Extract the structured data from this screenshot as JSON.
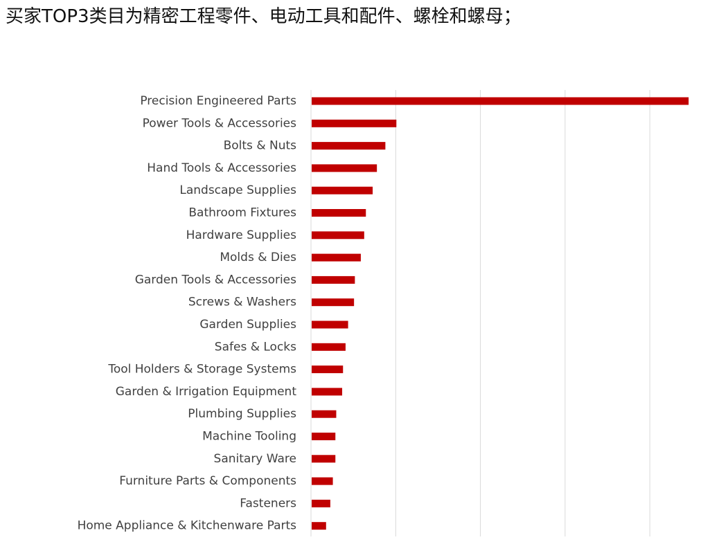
{
  "heading": "买家TOP3类目为精密工程零件、电动工具和配件、螺栓和螺母；",
  "colors": {
    "bar": "#c00000",
    "gridline": "#d9d9d9",
    "label": "#404040"
  },
  "chart_data": {
    "type": "bar",
    "orientation": "horizontal",
    "title": "",
    "xlabel": "",
    "ylabel": "",
    "grid": true,
    "legend": "none",
    "xlim": [
      0,
      4.5
    ],
    "x_tick_labels_shown": false,
    "categories": [
      "Precision Engineered Parts",
      "Power Tools & Accessories",
      "Bolts & Nuts",
      "Hand Tools & Accessories",
      "Landscape Supplies",
      "Bathroom Fixtures",
      "Hardware Supplies",
      "Molds & Dies",
      "Garden Tools & Accessories",
      "Screws & Washers",
      "Garden Supplies",
      "Safes & Locks",
      "Tool Holders & Storage Systems",
      "Garden & Irrigation Equipment",
      "Plumbing Supplies",
      "Machine Tooling",
      "Sanitary Ware",
      "Furniture Parts & Components",
      "Fasteners",
      "Home Appliance & Kitchenware Parts"
    ],
    "values": [
      4.45,
      1.0,
      0.87,
      0.77,
      0.72,
      0.64,
      0.62,
      0.58,
      0.51,
      0.5,
      0.43,
      0.4,
      0.37,
      0.36,
      0.29,
      0.28,
      0.28,
      0.25,
      0.22,
      0.17
    ]
  }
}
